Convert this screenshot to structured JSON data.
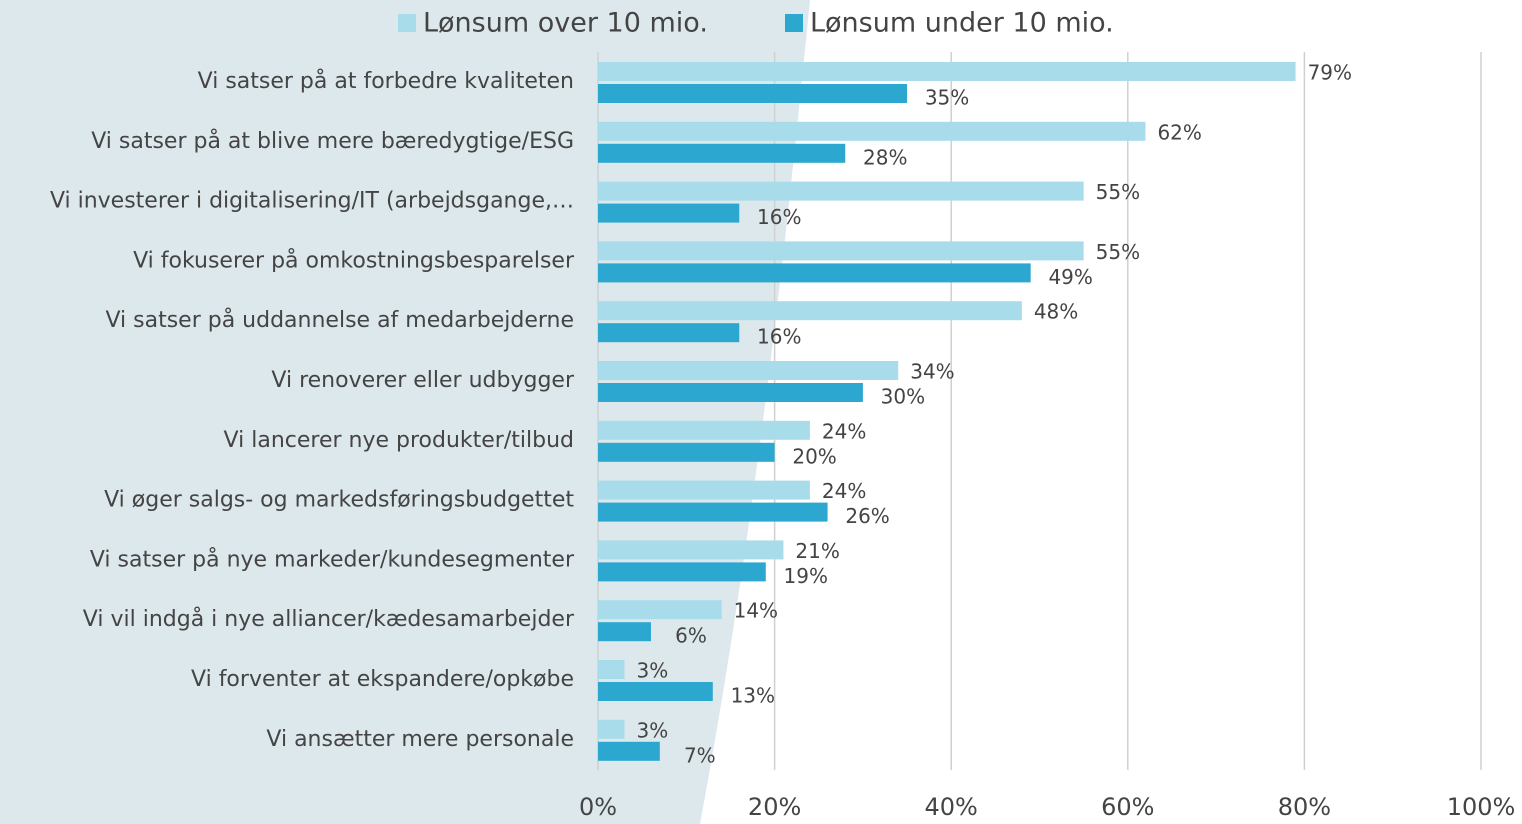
{
  "chart_data": {
    "type": "hbar",
    "categories": [
      "Vi satser på at forbedre kvaliteten",
      "Vi satser på at blive mere bæredygtige/ESG",
      "Vi investerer i digitalisering/IT (arbejdsgange,…",
      "Vi fokuserer på omkostningsbesparelser",
      "Vi satser på uddannelse af medarbejderne",
      "Vi renoverer eller udbygger",
      "Vi lancerer nye produkter/tilbud",
      "Vi øger salgs- og markedsføringsbudgettet",
      "Vi satser på nye markeder/kundesegmenter",
      "Vi vil indgå i nye alliancer/kædesamarbejder",
      "Vi forventer at ekspandere/opkøbe",
      "Vi ansætter mere personale"
    ],
    "series": [
      {
        "name": "Lønsum over 10 mio.",
        "color": "#a8dcea",
        "values": [
          79,
          62,
          55,
          55,
          48,
          34,
          24,
          24,
          21,
          14,
          3,
          3
        ],
        "value_labels": [
          "79%",
          "62%",
          "55%",
          "55%",
          "48%",
          "34%",
          "24%",
          "24%",
          "21%",
          "14%",
          "3%",
          "3%"
        ]
      },
      {
        "name": "Lønsum under 10 mio.",
        "color": "#2ba7d0",
        "values": [
          35,
          28,
          16,
          49,
          16,
          30,
          20,
          26,
          19,
          6,
          13,
          7
        ],
        "value_labels": [
          "35%",
          "28%",
          "16%",
          "49%",
          "16%",
          "30%",
          "20%",
          "26%",
          "19%",
          "6%",
          "13%",
          "7%"
        ]
      }
    ],
    "xlim": [
      0,
      100
    ],
    "xticks": [
      {
        "value": 0,
        "label": "0%"
      },
      {
        "value": 20,
        "label": "20%"
      },
      {
        "value": 40,
        "label": "40%"
      },
      {
        "value": 60,
        "label": "60%"
      },
      {
        "value": 80,
        "label": "80%"
      },
      {
        "value": 100,
        "label": "100%"
      }
    ],
    "grid": true,
    "legend": "top"
  }
}
